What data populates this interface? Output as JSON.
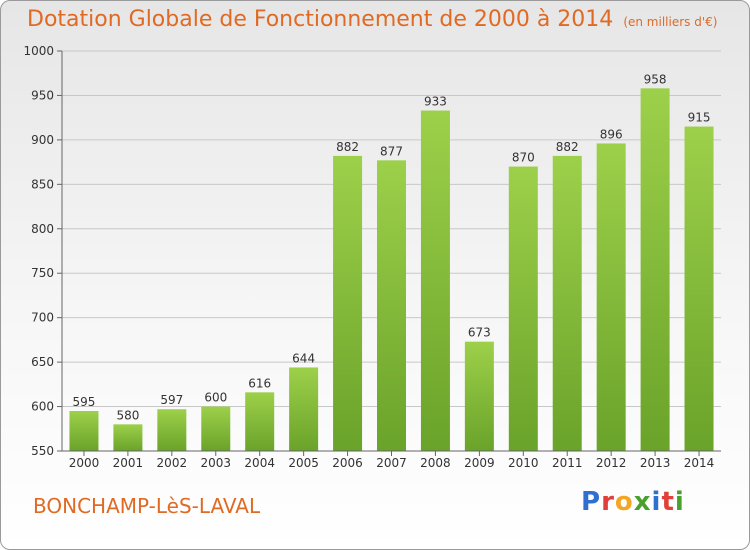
{
  "header": {
    "title": "Dotation Globale de Fonctionnement de 2000 à 2014",
    "unit": "(en milliers d'€)"
  },
  "footer": {
    "commune": "BONCHAMP-LèS-LAVAL",
    "logo_letters": [
      "P",
      "r",
      "o",
      "x",
      "i",
      "t",
      "i"
    ],
    "logo_colors": [
      "#2e6fd1",
      "#e0403a",
      "#f2a623",
      "#4aa02c",
      "#2e6fd1",
      "#e0403a",
      "#4aa02c"
    ]
  },
  "colors": {
    "bar_top": "#9dd04a",
    "bar_bottom": "#6aa32a",
    "grid": "#c8c8c8",
    "axis": "#666666",
    "title": "#e06a23"
  },
  "chart_data": {
    "type": "bar",
    "categories": [
      "2000",
      "2001",
      "2002",
      "2003",
      "2004",
      "2005",
      "2006",
      "2007",
      "2008",
      "2009",
      "2010",
      "2011",
      "2012",
      "2013",
      "2014"
    ],
    "values": [
      595,
      580,
      597,
      600,
      616,
      644,
      882,
      877,
      933,
      673,
      870,
      882,
      896,
      958,
      915
    ],
    "ylim": [
      550,
      1000
    ],
    "yticks": [
      550,
      600,
      650,
      700,
      750,
      800,
      850,
      900,
      950,
      1000
    ],
    "grid": true,
    "xlabel": "",
    "ylabel": ""
  }
}
